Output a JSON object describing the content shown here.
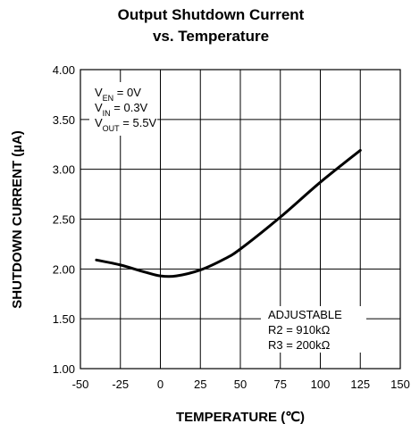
{
  "chart_data": {
    "type": "line",
    "title": [
      "Output Shutdown Current",
      "vs. Temperature"
    ],
    "x_label": "TEMPERATURE (℃)",
    "y_label": "SHUTDOWN CURRENT (µA)",
    "x": [
      -40,
      -25,
      -10,
      0,
      10,
      25,
      40,
      50,
      75,
      100,
      125
    ],
    "values": [
      2.09,
      2.04,
      1.97,
      1.93,
      1.93,
      1.99,
      2.1,
      2.2,
      2.52,
      2.87,
      3.19
    ],
    "color": "#000000",
    "xlim": [
      -50,
      150
    ],
    "xticks": [
      -50,
      -25,
      0,
      25,
      50,
      75,
      100,
      125,
      150
    ],
    "ylim": [
      1,
      4
    ],
    "yticks": [
      {
        "value": 1,
        "label": "1.00"
      },
      {
        "value": 1.5,
        "label": "1.50"
      },
      {
        "value": 2,
        "label": "2.00"
      },
      {
        "value": 2.5,
        "label": "2.50"
      },
      {
        "value": 3,
        "label": "3.00"
      },
      {
        "value": 3.5,
        "label": "3.50"
      },
      {
        "value": 4,
        "label": "4.00"
      }
    ],
    "grid": true,
    "annotations": [
      {
        "lines": [
          {
            "main": "V",
            "sub": "EN",
            "rest": " = 0V"
          },
          {
            "main": "V",
            "sub": "IN",
            "rest": " = 0.3V"
          },
          {
            "main": "V",
            "sub": "OUT",
            "rest": " = 5.5V"
          }
        ]
      },
      {
        "lines": [
          {
            "main": "ADJUSTABLE"
          },
          {
            "main": "R2 = 910kΩ"
          },
          {
            "main": "R3 = 200kΩ"
          }
        ]
      }
    ]
  }
}
